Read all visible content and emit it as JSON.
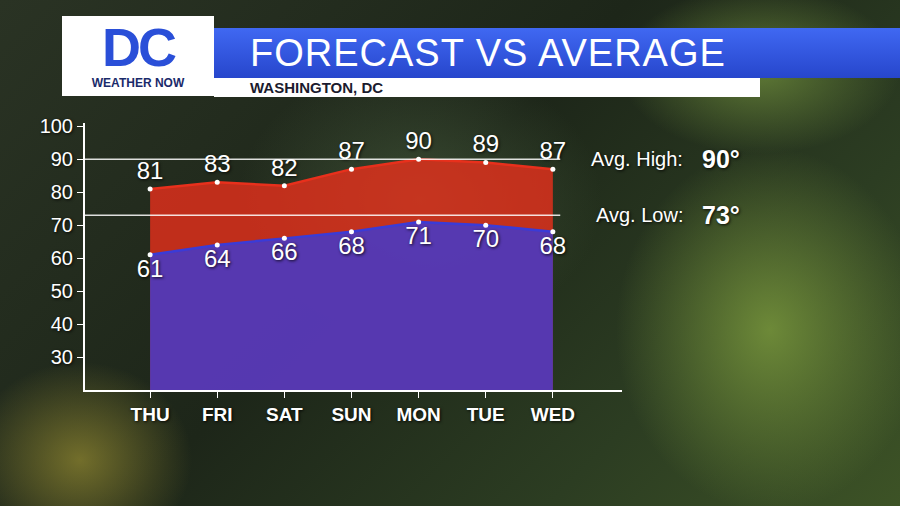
{
  "chart_data": {
    "type": "area",
    "title": "FORECAST VS AVERAGE",
    "subtitle": "WASHINGTON, DC",
    "categories": [
      "THU",
      "FRI",
      "SAT",
      "SUN",
      "MON",
      "TUE",
      "WED"
    ],
    "series": [
      {
        "color": "#e8301c",
        "values": [
          81,
          83,
          82,
          87,
          90,
          89,
          87
        ]
      },
      {
        "color": "#3b3bd6",
        "values": [
          61,
          64,
          66,
          68,
          71,
          70,
          68
        ]
      }
    ],
    "ylim": [
      20,
      101
    ],
    "yticks": [
      30,
      40,
      50,
      60,
      70,
      80,
      90,
      100
    ],
    "grid": false,
    "data_labels": true,
    "reference_lines": [
      {
        "label": "Avg. High:",
        "value": 90,
        "value_label": "90°"
      },
      {
        "label": "Avg. Low:",
        "value": 73,
        "value_label": "73°"
      }
    ]
  },
  "logo": {
    "text": "DC",
    "subtext": "WEATHER NOW"
  }
}
